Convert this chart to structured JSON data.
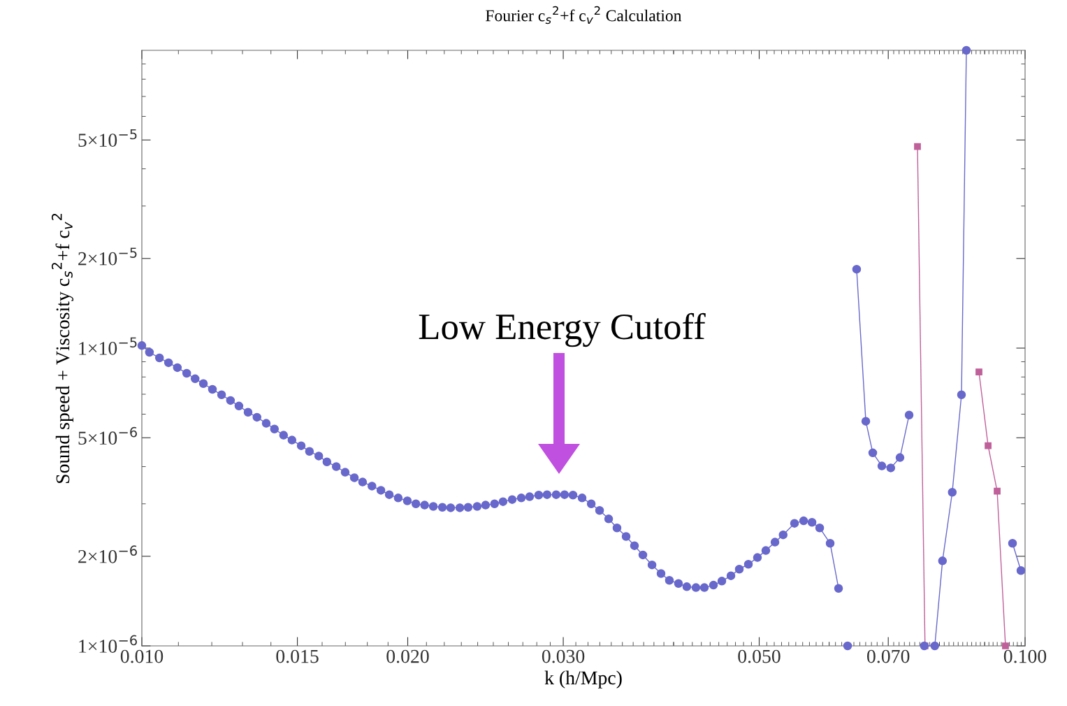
{
  "chart_data": {
    "type": "line",
    "title": "Fourier c$_{s}$$^{2}$+f c$_{v}$$^{2}$ Calculation",
    "xlabel": "k (h/Mpc)",
    "ylabel": "Sound speed + Viscosity c$_{s}$$^{2}$+f c$_{v}$$^{2}$",
    "log": "xy",
    "grid": false,
    "xlim": [
      0.01,
      0.1
    ],
    "ylim": [
      1e-06,
      0.0001
    ],
    "xticks": [
      {
        "value": 0.01,
        "label": "0.010"
      },
      {
        "value": 0.015,
        "label": "0.015"
      },
      {
        "value": 0.02,
        "label": "0.020"
      },
      {
        "value": 0.03,
        "label": "0.030"
      },
      {
        "value": 0.05,
        "label": "0.050"
      },
      {
        "value": 0.07,
        "label": "0.070"
      },
      {
        "value": 0.1,
        "label": "0.100"
      }
    ],
    "yticks": [
      {
        "value": 1e-06,
        "label": "1×10$^{−6}$"
      },
      {
        "value": 2e-06,
        "label": "2×10$^{−6}$"
      },
      {
        "value": 5e-06,
        "label": "5×10$^{−6}$"
      },
      {
        "value": 1e-05,
        "label": "1×10$^{−5}$"
      },
      {
        "value": 2e-05,
        "label": "2×10$^{−5}$"
      },
      {
        "value": 5e-05,
        "label": "5×10$^{−5}$"
      }
    ],
    "annotations": [
      "Low Energy Cutoff"
    ],
    "series": [
      {
        "color": "#6868cc",
        "marker": "circle",
        "x": [
          0.01,
          0.0102,
          0.01047,
          0.01072,
          0.01097,
          0.01124,
          0.01149,
          0.01174,
          0.01202,
          0.01231,
          0.0126,
          0.01288,
          0.01319,
          0.0135,
          0.01383,
          0.01413,
          0.01447,
          0.01479,
          0.01515,
          0.01548,
          0.01586,
          0.0162,
          0.0166,
          0.01699,
          0.0174,
          0.01778,
          0.01822,
          0.01865,
          0.01906,
          0.01951,
          0.01998,
          0.02043,
          0.0209,
          0.02138,
          0.02189,
          0.02237,
          0.02291,
          0.02341,
          0.02397,
          0.0245,
          0.02508,
          0.02564,
          0.02626,
          0.02689,
          0.02748,
          0.02814,
          0.02876,
          0.02945,
          0.0301,
          0.03077,
          0.03151,
          0.03227,
          0.03298,
          0.03377,
          0.03451,
          0.03534,
          0.03612,
          0.03692,
          0.03781,
          0.03871,
          0.03956,
          0.04051,
          0.0414,
          0.0424,
          0.04334,
          0.04438,
          0.04536,
          0.04645,
          0.04747,
          0.04861,
          0.04977,
          0.05087,
          0.0521,
          0.05322,
          0.05482,
          0.05614,
          0.05738,
          0.05854,
          0.06016,
          0.06149
        ],
        "values": [
          1.02e-05,
          9.68e-06,
          9.27e-06,
          8.93e-06,
          8.6e-06,
          8.23e-06,
          7.89e-06,
          7.6e-06,
          7.27e-06,
          6.97e-06,
          6.67e-06,
          6.39e-06,
          6.09e-06,
          5.86e-06,
          5.59e-06,
          5.35e-06,
          5.1e-06,
          4.91e-06,
          4.7e-06,
          4.5e-06,
          4.34e-06,
          4.15e-06,
          4e-06,
          3.83e-06,
          3.67e-06,
          3.55e-06,
          3.44e-06,
          3.33e-06,
          3.22e-06,
          3.14e-06,
          3.07e-06,
          3e-06,
          2.97e-06,
          2.94e-06,
          2.92e-06,
          2.91e-06,
          2.91e-06,
          2.92e-06,
          2.94e-06,
          2.97e-06,
          3e-06,
          3.05e-06,
          3.1e-06,
          3.14e-06,
          3.17e-06,
          3.21e-06,
          3.22e-06,
          3.22e-06,
          3.22e-06,
          3.21e-06,
          3.14e-06,
          3e-06,
          2.85e-06,
          2.67e-06,
          2.49e-06,
          2.33e-06,
          2.17e-06,
          2.02e-06,
          1.87e-06,
          1.75e-06,
          1.66e-06,
          1.62e-06,
          1.58e-06,
          1.57e-06,
          1.57e-06,
          1.6e-06,
          1.65e-06,
          1.72e-06,
          1.81e-06,
          1.88e-06,
          1.98e-06,
          2.09e-06,
          2.23e-06,
          2.36e-06,
          2.58e-06,
          2.63e-06,
          2.6e-06,
          2.49e-06,
          2.21e-06,
          1.56e-06
        ]
      },
      {
        "color": "#6868cc",
        "marker": "circle",
        "x": [
          0.06296
        ],
        "values": [
          1e-06
        ]
      },
      {
        "color": "#6868cc",
        "marker": "circle",
        "x": [
          0.06446,
          0.06602,
          0.06723,
          0.06884,
          0.07046,
          0.07217,
          0.07391
        ],
        "values": [
          1.84e-05,
          5.68e-06,
          4.45e-06,
          4.02e-06,
          3.96e-06,
          4.29e-06,
          5.96e-06
        ]
      },
      {
        "color": "#6868cc",
        "marker": "circle",
        "x": [
          0.0769,
          0.07903,
          0.08063,
          0.08271,
          0.08472,
          0.08581
        ],
        "values": [
          1e-06,
          1e-06,
          1.93e-06,
          3.28e-06,
          6.97e-06,
          0.0001
        ]
      },
      {
        "color": "#6868cc",
        "marker": "circle",
        "x": [
          0.09678,
          0.09892
        ],
        "values": [
          2.21e-06,
          1.79e-06
        ]
      },
      {
        "color": "#c0609a",
        "marker": "square",
        "x": [
          0.07554,
          0.07704
        ],
        "values": [
          4.75e-05,
          1e-06
        ]
      },
      {
        "color": "#c0609a",
        "marker": "square",
        "x": [
          0.08867,
          0.09081,
          0.09298,
          0.09502
        ],
        "values": [
          8.32e-06,
          4.7e-06,
          3.31e-06,
          1e-06
        ]
      }
    ]
  }
}
